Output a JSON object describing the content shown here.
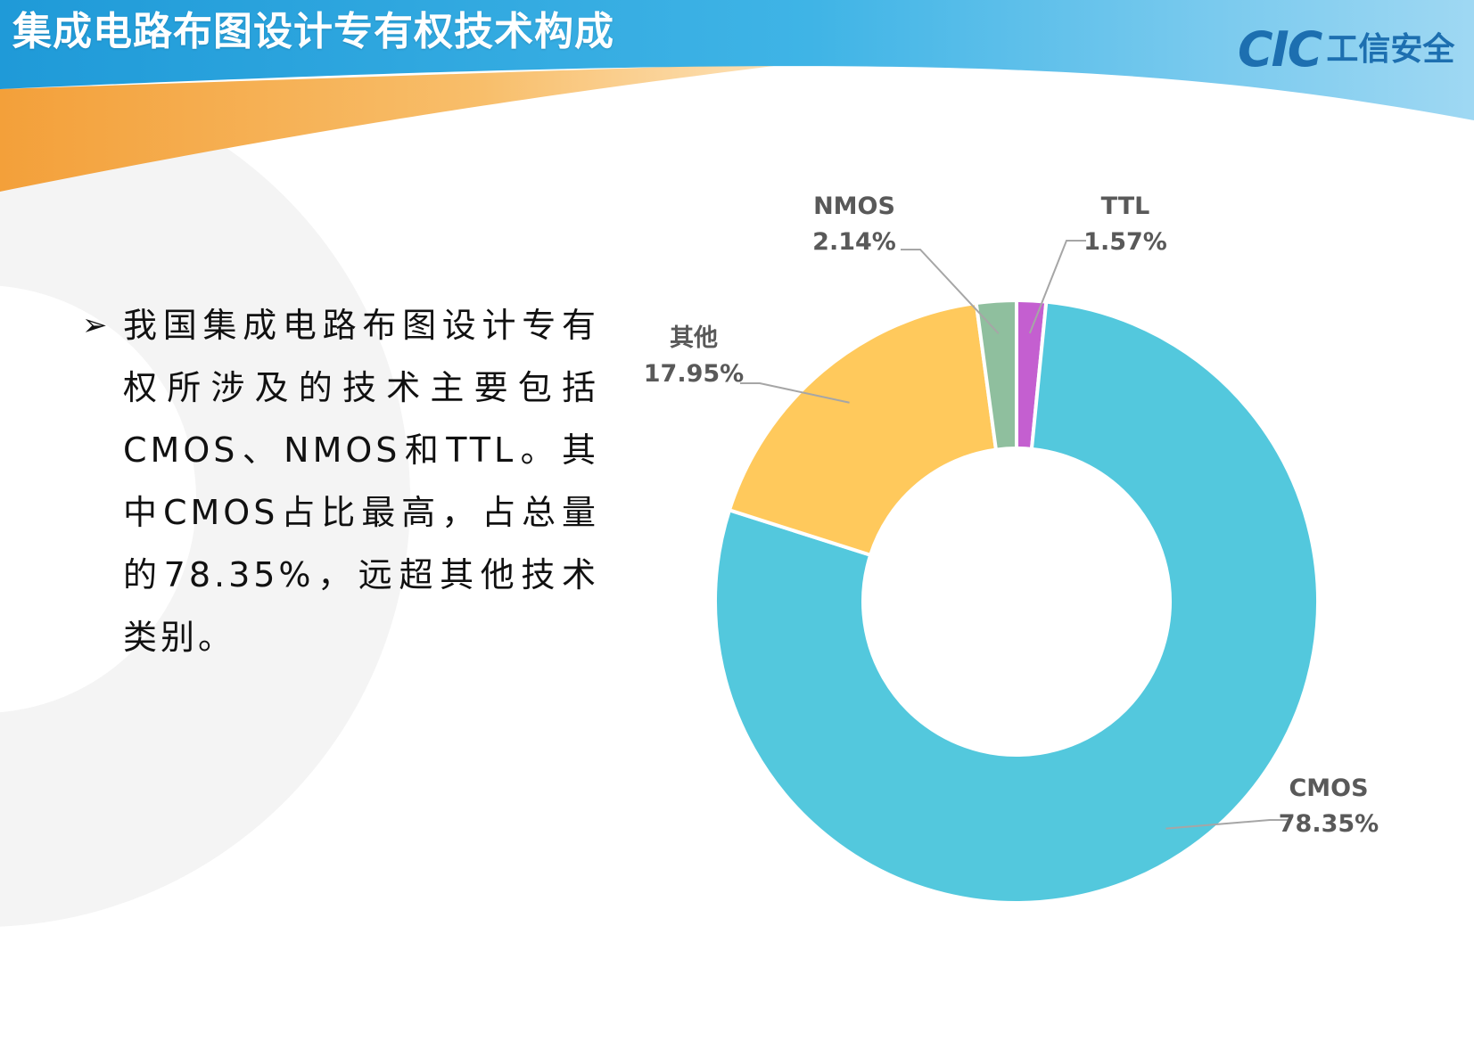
{
  "header": {
    "title": "集成电路布图设计专有权技术构成",
    "logo_mark": "CIC",
    "logo_text": "工信安全"
  },
  "bullet": {
    "marker": "➢",
    "text": "我国集成电路布图设计专有权所涉及的技术主要包括CMOS、NMOS和TTL。其中CMOS占比最高，占总量的78.35%，远超其他技术类别。"
  },
  "colors": {
    "banner_blue": "#39a9e0",
    "banner_orange": "#f5a54a",
    "logo_blue": "#1d6fb0"
  },
  "chart_data": {
    "type": "pie",
    "subtype": "donut",
    "title": "",
    "categories": [
      "TTL",
      "CMOS",
      "其他",
      "NMOS"
    ],
    "values": [
      1.57,
      78.35,
      17.95,
      2.14
    ],
    "value_labels": [
      "1.57%",
      "78.35%",
      "17.95%",
      "2.14%"
    ],
    "colors": [
      "#c45fd0",
      "#53c8dd",
      "#ffc95c",
      "#8fbf9e"
    ],
    "start_angle_deg": 0,
    "direction": "clockwise",
    "data_labels": "name and percent, outside with leader lines",
    "legend": "none"
  }
}
